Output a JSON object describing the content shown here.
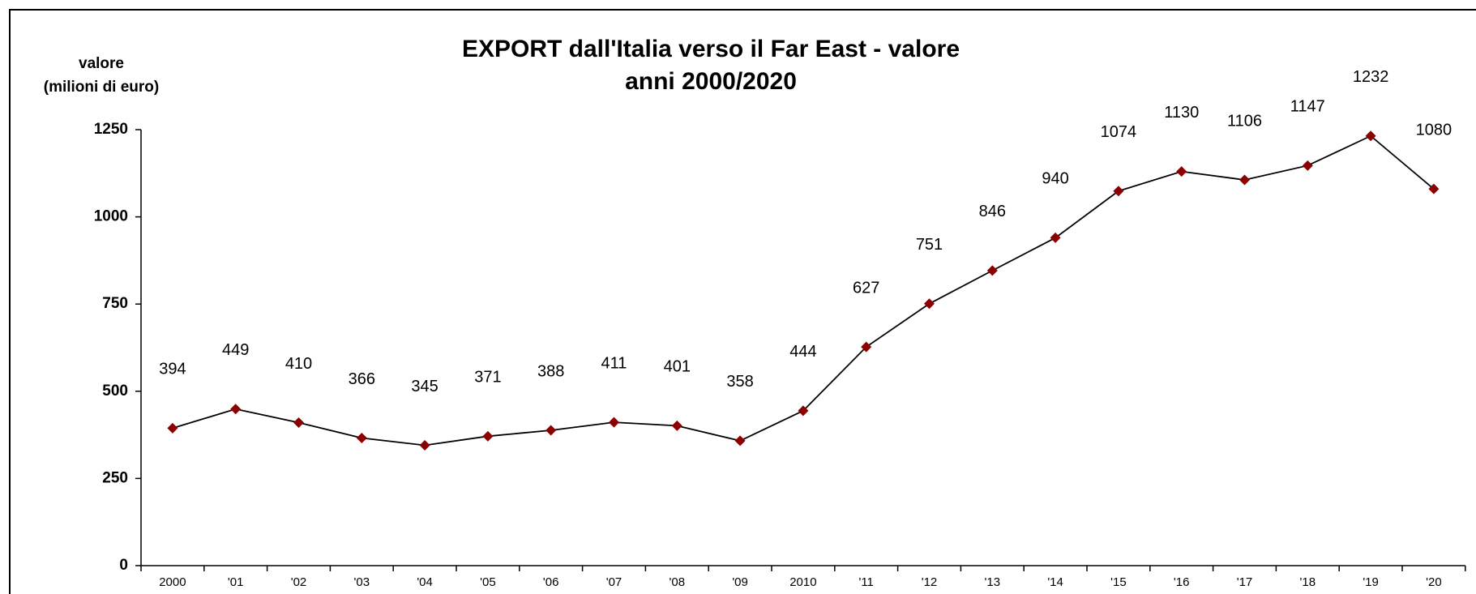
{
  "chart_data": {
    "type": "line",
    "title": "EXPORT dall'Italia verso il Far East - valore",
    "subtitle": "anni 2000/2020",
    "y_label": [
      "valore",
      "(milioni di euro)"
    ],
    "categories": [
      "2000",
      "'01",
      "'02",
      "'03",
      "'04",
      "'05",
      "'06",
      "'07",
      "'08",
      "'09",
      "2010",
      "'11",
      "'12",
      "'13",
      "'14",
      "'15",
      "'16",
      "'17",
      "'18",
      "'19",
      "'20"
    ],
    "values": [
      394,
      449,
      410,
      366,
      345,
      371,
      388,
      411,
      401,
      358,
      444,
      627,
      751,
      846,
      940,
      1074,
      1130,
      1106,
      1147,
      1232,
      1080
    ],
    "color": "#8b0000",
    "line_color": "#000000",
    "ylim": [
      0,
      1250
    ],
    "yticks": [
      0,
      250,
      500,
      750,
      1000,
      1250
    ],
    "grid": false
  }
}
